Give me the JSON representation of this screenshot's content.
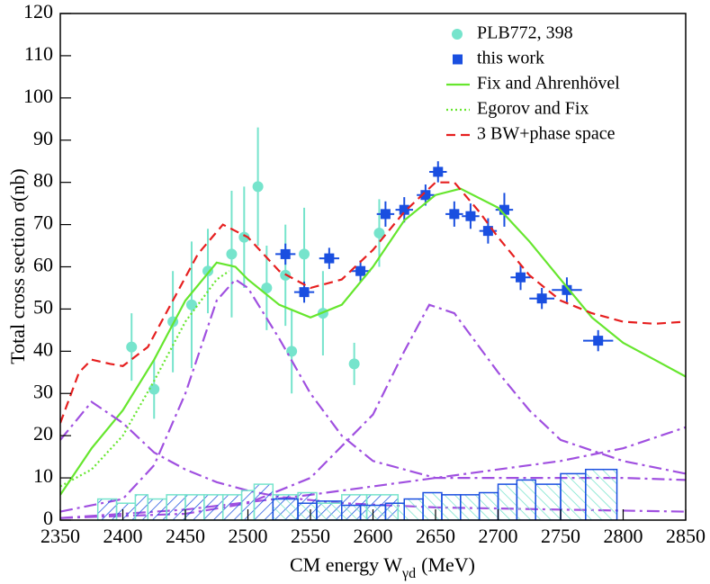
{
  "chart_data": {
    "type": "scatter",
    "y_label": "Total cross section σ(nb)",
    "x_label": [
      "CM energy W",
      "γd",
      "(MeV)"
    ],
    "xlim": [
      2350,
      2850
    ],
    "xticks": [
      2350,
      2400,
      2450,
      2500,
      2550,
      2600,
      2650,
      2700,
      2750,
      2800,
      2850
    ],
    "ylim": [
      0,
      120
    ],
    "yticks": [
      0,
      10,
      20,
      30,
      40,
      50,
      60,
      70,
      80,
      90,
      100,
      110,
      120
    ],
    "legend": "upper right",
    "series": [
      {
        "name": "PLB772, 398",
        "style": "points",
        "marker": "circle",
        "color": "#76e4cc",
        "x": [
          2407,
          2425,
          2440,
          2455,
          2468,
          2487,
          2497,
          2508,
          2515,
          2530,
          2535,
          2545,
          2560,
          2585,
          2605
        ],
        "values": [
          41,
          31,
          47,
          51,
          59,
          63,
          67,
          79,
          55,
          58,
          40,
          63,
          49,
          37,
          68
        ],
        "errors": [
          8,
          7,
          12,
          15,
          10,
          15,
          12,
          14,
          10,
          12,
          10,
          11,
          10,
          5,
          8
        ]
      },
      {
        "name": "this work",
        "style": "points",
        "marker": "square",
        "color": "#1a4fe0",
        "x": [
          2530,
          2545,
          2565,
          2590,
          2610,
          2625,
          2642,
          2652,
          2665,
          2678,
          2692,
          2705,
          2718,
          2735,
          2755,
          2780
        ],
        "values": [
          63,
          54,
          62,
          59,
          72.5,
          73.5,
          77,
          82.5,
          72.5,
          72,
          68.5,
          73.5,
          57.5,
          52.5,
          54.5,
          42.5
        ],
        "errors": [
          2.5,
          2.5,
          2.5,
          2.5,
          3,
          3,
          2.5,
          2.5,
          3,
          3,
          3,
          4,
          3,
          2.5,
          3,
          2.5
        ],
        "xerrors": [
          8,
          8,
          8,
          8,
          7,
          7,
          7,
          7,
          7,
          7,
          7,
          7,
          8,
          10,
          12,
          12
        ]
      },
      {
        "name": "Fix and Ahrenhövel",
        "style": "line",
        "dash": "solid",
        "color": "#66e62e",
        "x": [
          2350,
          2375,
          2400,
          2425,
          2450,
          2475,
          2490,
          2500,
          2525,
          2550,
          2575,
          2600,
          2625,
          2650,
          2670,
          2700,
          2725,
          2750,
          2775,
          2800,
          2825,
          2850
        ],
        "values": [
          6,
          17,
          26,
          38,
          52,
          61,
          60,
          57,
          51,
          48,
          51,
          60,
          71,
          77,
          78.5,
          74,
          66,
          57,
          48,
          42,
          38,
          34
        ]
      },
      {
        "name": "Egorov and Fix",
        "style": "line",
        "dash": "dotted",
        "color": "#66e62e",
        "x": [
          2350,
          2375,
          2400,
          2425,
          2450,
          2475,
          2485
        ],
        "values": [
          8,
          12,
          20,
          33,
          47,
          57,
          59
        ]
      },
      {
        "name": "3 BW+phase space",
        "style": "line",
        "dash": "dashed",
        "color": "#e62020",
        "x": [
          2350,
          2365,
          2375,
          2390,
          2400,
          2420,
          2440,
          2460,
          2480,
          2500,
          2525,
          2550,
          2575,
          2600,
          2625,
          2650,
          2665,
          2685,
          2700,
          2725,
          2750,
          2775,
          2800,
          2825,
          2850
        ],
        "values": [
          23,
          35,
          38,
          37,
          36.5,
          41,
          52,
          63,
          70,
          67,
          59,
          55,
          57,
          64,
          73,
          80,
          80,
          73,
          67,
          58,
          52,
          49,
          47,
          46.5,
          47
        ]
      },
      {
        "style": "line",
        "dash": "dashdot",
        "color": "#a050e0",
        "x": [
          2350,
          2375,
          2400,
          2425,
          2450,
          2475,
          2500,
          2525,
          2575,
          2650,
          2750,
          2850
        ],
        "values": [
          19,
          28,
          23,
          16,
          12,
          9,
          7,
          5.5,
          4,
          3,
          2.5,
          2
        ]
      },
      {
        "style": "line",
        "dash": "dashdot",
        "color": "#a050e0",
        "x": [
          2350,
          2400,
          2425,
          2450,
          2475,
          2490,
          2500,
          2525,
          2550,
          2575,
          2600,
          2650,
          2700,
          2750,
          2800,
          2850
        ],
        "values": [
          2,
          5,
          13,
          30,
          52,
          57,
          55,
          43,
          30,
          20,
          14,
          10,
          10,
          10,
          10,
          9.5
        ]
      },
      {
        "style": "line",
        "dash": "dashdot",
        "color": "#a050e0",
        "x": [
          2350,
          2450,
          2500,
          2550,
          2600,
          2625,
          2645,
          2665,
          2700,
          2725,
          2750,
          2800,
          2850
        ],
        "values": [
          0.5,
          1.5,
          4,
          10,
          25,
          40,
          51,
          49,
          35,
          26,
          19,
          14,
          11
        ]
      },
      {
        "style": "line",
        "dash": "dashdot",
        "color": "#a050e0",
        "x": [
          2350,
          2450,
          2550,
          2650,
          2750,
          2800,
          2850
        ],
        "values": [
          0.5,
          2.5,
          6,
          10,
          14,
          17,
          22
        ]
      },
      {
        "style": "bars",
        "color": "#76e4cc",
        "bins": [
          2380,
          2395,
          2410,
          2420,
          2435,
          2450,
          2465,
          2480,
          2495,
          2505,
          2520,
          2540,
          2555,
          2575,
          2595,
          2620
        ],
        "counts": [
          5,
          4,
          6,
          5,
          6,
          6,
          6,
          6,
          7,
          8.5,
          6,
          6.5,
          4,
          6,
          6
        ]
      },
      {
        "style": "bars",
        "color": "#1a4fe0",
        "bins": [
          2520,
          2540,
          2555,
          2575,
          2590,
          2610,
          2625,
          2640,
          2655,
          2670,
          2685,
          2700,
          2715,
          2730,
          2750,
          2770,
          2795
        ],
        "counts": [
          5,
          4,
          4.5,
          3.5,
          3.5,
          4,
          5,
          6.5,
          6,
          6,
          6.5,
          8.5,
          9.5,
          8.5,
          11,
          12
        ]
      }
    ]
  }
}
